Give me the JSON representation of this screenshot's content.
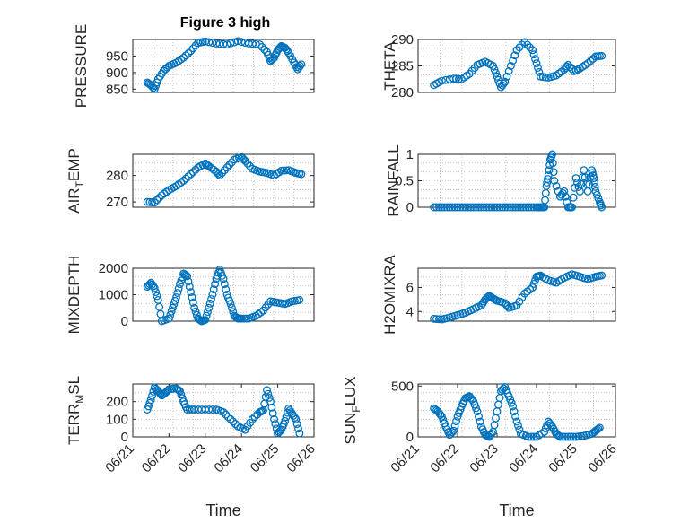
{
  "figure": {
    "title": "Figure 3 high"
  },
  "style": {
    "marker_color": "#0072BD",
    "axis_color": "#262626",
    "grid_color": "#b8b8b8"
  },
  "chart_data": [
    {
      "type": "scatter",
      "title": "Figure 3 high",
      "ylabel": "PRESSURE",
      "ylabel_sub": "",
      "ylabel_after": "",
      "xlabel": "",
      "ylim": [
        840,
        1000
      ],
      "yticks": [
        850,
        900,
        950
      ],
      "ytick_labels": [
        "850",
        "900",
        "950"
      ],
      "xlim": [
        "06/21",
        "06/26"
      ],
      "xticks": [],
      "grid": true,
      "points": [
        [
          0.4,
          870
        ],
        [
          0.5,
          862
        ],
        [
          0.6,
          850
        ],
        [
          0.7,
          880
        ],
        [
          0.85,
          905
        ],
        [
          1.0,
          920
        ],
        [
          1.2,
          930
        ],
        [
          1.4,
          945
        ],
        [
          1.6,
          965
        ],
        [
          1.8,
          990
        ],
        [
          2.0,
          994
        ],
        [
          2.3,
          988
        ],
        [
          2.6,
          985
        ],
        [
          2.9,
          995
        ],
        [
          3.2,
          988
        ],
        [
          3.5,
          985
        ],
        [
          3.7,
          962
        ],
        [
          3.8,
          935
        ],
        [
          3.9,
          945
        ],
        [
          4.0,
          968
        ],
        [
          4.1,
          980
        ],
        [
          4.2,
          975
        ],
        [
          4.3,
          960
        ],
        [
          4.45,
          930
        ],
        [
          4.55,
          910
        ],
        [
          4.65,
          925
        ]
      ]
    },
    {
      "type": "scatter",
      "title": "",
      "ylabel": "THETA",
      "ylabel_sub": "",
      "ylabel_after": "",
      "xlabel": "",
      "ylim": [
        280,
        290
      ],
      "yticks": [
        280,
        285,
        290
      ],
      "ytick_labels": [
        "280",
        "285",
        "290"
      ],
      "xlim": [
        "06/21",
        "06/26"
      ],
      "xticks": [],
      "grid": true,
      "points": [
        [
          0.4,
          281.4
        ],
        [
          0.6,
          282.2
        ],
        [
          0.9,
          282.6
        ],
        [
          1.1,
          282.5
        ],
        [
          1.3,
          283.5
        ],
        [
          1.5,
          285.2
        ],
        [
          1.7,
          285.8
        ],
        [
          1.9,
          285.0
        ],
        [
          2.0,
          283.0
        ],
        [
          2.1,
          281.0
        ],
        [
          2.2,
          282.0
        ],
        [
          2.35,
          285.0
        ],
        [
          2.5,
          288.0
        ],
        [
          2.7,
          289.5
        ],
        [
          2.9,
          288.0
        ],
        [
          3.0,
          285.5
        ],
        [
          3.1,
          283.0
        ],
        [
          3.3,
          282.8
        ],
        [
          3.5,
          283.2
        ],
        [
          3.7,
          284.3
        ],
        [
          3.8,
          285.2
        ],
        [
          3.95,
          284.0
        ],
        [
          4.1,
          284.5
        ],
        [
          4.3,
          285.5
        ],
        [
          4.5,
          286.8
        ],
        [
          4.65,
          286.9
        ]
      ]
    },
    {
      "type": "scatter",
      "title": "",
      "ylabel": "AIR",
      "ylabel_sub": "T",
      "ylabel_after": "EMP",
      "xlabel": "",
      "ylim": [
        268,
        288
      ],
      "yticks": [
        270,
        280
      ],
      "ytick_labels": [
        "270",
        "280"
      ],
      "xlim": [
        "06/21",
        "06/26"
      ],
      "xticks": [],
      "grid": true,
      "points": [
        [
          0.4,
          270.0
        ],
        [
          0.6,
          269.8
        ],
        [
          0.8,
          272.5
        ],
        [
          1.0,
          274.5
        ],
        [
          1.2,
          276.0
        ],
        [
          1.4,
          278.0
        ],
        [
          1.6,
          280.5
        ],
        [
          1.8,
          283.0
        ],
        [
          2.0,
          284.5
        ],
        [
          2.1,
          283.5
        ],
        [
          2.3,
          281.5
        ],
        [
          2.4,
          280.0
        ],
        [
          2.6,
          283.0
        ],
        [
          2.8,
          286.0
        ],
        [
          3.0,
          287.0
        ],
        [
          3.1,
          285.5
        ],
        [
          3.3,
          282.5
        ],
        [
          3.5,
          281.5
        ],
        [
          3.7,
          281.0
        ],
        [
          3.9,
          280.0
        ],
        [
          4.1,
          281.8
        ],
        [
          4.3,
          282.0
        ],
        [
          4.5,
          281.0
        ],
        [
          4.65,
          280.5
        ]
      ]
    },
    {
      "type": "scatter",
      "title": "",
      "ylabel": "RAINFALL",
      "ylabel_sub": "",
      "ylabel_after": "",
      "xlabel": "",
      "ylim": [
        0,
        1
      ],
      "yticks": [
        0,
        0.5,
        1
      ],
      "ytick_labels": [
        "0",
        "0.5",
        "1"
      ],
      "xlim": [
        "06/21",
        "06/26"
      ],
      "xticks": [],
      "grid": true,
      "points": [
        [
          0.4,
          0
        ],
        [
          0.6,
          0
        ],
        [
          0.8,
          0
        ],
        [
          1.0,
          0
        ],
        [
          1.2,
          0
        ],
        [
          1.4,
          0
        ],
        [
          1.6,
          0
        ],
        [
          1.8,
          0
        ],
        [
          2.0,
          0
        ],
        [
          2.2,
          0
        ],
        [
          2.4,
          0
        ],
        [
          2.6,
          0
        ],
        [
          2.8,
          0
        ],
        [
          3.0,
          0
        ],
        [
          3.1,
          0
        ],
        [
          3.2,
          0
        ],
        [
          3.25,
          0.4
        ],
        [
          3.3,
          0.6
        ],
        [
          3.35,
          0.9
        ],
        [
          3.4,
          1.0
        ],
        [
          3.45,
          0.5
        ],
        [
          3.6,
          0.2
        ],
        [
          3.7,
          0.3
        ],
        [
          3.8,
          0
        ],
        [
          3.9,
          0
        ],
        [
          4.0,
          0.55
        ],
        [
          4.1,
          0.3
        ],
        [
          4.2,
          0.7
        ],
        [
          4.3,
          0.3
        ],
        [
          4.4,
          0.7
        ],
        [
          4.45,
          0.55
        ],
        [
          4.5,
          0.3
        ],
        [
          4.6,
          0.1
        ],
        [
          4.65,
          0
        ]
      ]
    },
    {
      "type": "scatter",
      "title": "",
      "ylabel": "MIXDEPTH",
      "ylabel_sub": "",
      "ylabel_after": "",
      "xlabel": "",
      "ylim": [
        0,
        2000
      ],
      "yticks": [
        0,
        1000,
        2000
      ],
      "ytick_labels": [
        "0",
        "1000",
        "2000"
      ],
      "xlim": [
        "06/21",
        "06/26"
      ],
      "xticks": [],
      "grid": true,
      "points": [
        [
          0.4,
          1300
        ],
        [
          0.5,
          1450
        ],
        [
          0.6,
          1250
        ],
        [
          0.7,
          800
        ],
        [
          0.8,
          0
        ],
        [
          1.0,
          100
        ],
        [
          1.1,
          500
        ],
        [
          1.2,
          900
        ],
        [
          1.3,
          1400
        ],
        [
          1.4,
          1800
        ],
        [
          1.5,
          1700
        ],
        [
          1.6,
          1100
        ],
        [
          1.7,
          500
        ],
        [
          1.8,
          100
        ],
        [
          1.9,
          0
        ],
        [
          2.0,
          50
        ],
        [
          2.1,
          500
        ],
        [
          2.2,
          1000
        ],
        [
          2.3,
          1600
        ],
        [
          2.4,
          1950
        ],
        [
          2.5,
          1600
        ],
        [
          2.6,
          1000
        ],
        [
          2.7,
          650
        ],
        [
          2.8,
          200
        ],
        [
          2.9,
          100
        ],
        [
          3.0,
          100
        ],
        [
          3.2,
          100
        ],
        [
          3.4,
          200
        ],
        [
          3.6,
          400
        ],
        [
          3.8,
          750
        ],
        [
          4.0,
          700
        ],
        [
          4.2,
          650
        ],
        [
          4.4,
          750
        ],
        [
          4.6,
          800
        ]
      ]
    },
    {
      "type": "scatter",
      "title": "",
      "ylabel": "H2OMIXRA",
      "ylabel_sub": "",
      "ylabel_after": "",
      "xlabel": "",
      "ylim": [
        3.2,
        7.6
      ],
      "yticks": [
        4,
        6
      ],
      "ytick_labels": [
        "4",
        "6"
      ],
      "xlim": [
        "06/21",
        "06/26"
      ],
      "xticks": [],
      "grid": true,
      "points": [
        [
          0.4,
          3.4
        ],
        [
          0.6,
          3.35
        ],
        [
          0.8,
          3.5
        ],
        [
          1.0,
          3.7
        ],
        [
          1.2,
          3.9
        ],
        [
          1.4,
          4.2
        ],
        [
          1.6,
          4.5
        ],
        [
          1.7,
          5.0
        ],
        [
          1.8,
          5.3
        ],
        [
          1.9,
          5.1
        ],
        [
          2.0,
          4.9
        ],
        [
          2.2,
          4.7
        ],
        [
          2.3,
          4.3
        ],
        [
          2.5,
          4.5
        ],
        [
          2.7,
          5.5
        ],
        [
          2.9,
          6.0
        ],
        [
          3.0,
          6.9
        ],
        [
          3.1,
          7.0
        ],
        [
          3.3,
          6.6
        ],
        [
          3.5,
          6.4
        ],
        [
          3.7,
          6.8
        ],
        [
          3.9,
          7.1
        ],
        [
          4.1,
          6.9
        ],
        [
          4.3,
          6.7
        ],
        [
          4.5,
          6.9
        ],
        [
          4.65,
          7.0
        ]
      ]
    },
    {
      "type": "scatter",
      "title": "",
      "ylabel": "TERR",
      "ylabel_sub": "M",
      "ylabel_after": "SL",
      "xlabel": "Time",
      "ylim": [
        0,
        300
      ],
      "yticks": [
        0,
        100,
        200
      ],
      "ytick_labels": [
        "0",
        "100",
        "200"
      ],
      "xlim": [
        "06/21",
        "06/26"
      ],
      "xticks": [
        0,
        1,
        2,
        3,
        4,
        5
      ],
      "xtick_labels": [
        "06/21",
        "06/22",
        "06/23",
        "06/24",
        "06/25",
        "06/26"
      ],
      "grid": true,
      "points": [
        [
          0.4,
          155
        ],
        [
          0.5,
          210
        ],
        [
          0.6,
          280
        ],
        [
          0.7,
          260
        ],
        [
          0.8,
          235
        ],
        [
          0.9,
          250
        ],
        [
          1.0,
          270
        ],
        [
          1.2,
          275
        ],
        [
          1.3,
          260
        ],
        [
          1.4,
          200
        ],
        [
          1.5,
          155
        ],
        [
          1.7,
          155
        ],
        [
          2.0,
          155
        ],
        [
          2.3,
          155
        ],
        [
          2.5,
          140
        ],
        [
          2.7,
          100
        ],
        [
          2.9,
          60
        ],
        [
          3.1,
          40
        ],
        [
          3.3,
          100
        ],
        [
          3.5,
          140
        ],
        [
          3.6,
          150
        ],
        [
          3.7,
          265
        ],
        [
          3.8,
          200
        ],
        [
          3.9,
          100
        ],
        [
          4.0,
          20
        ],
        [
          4.1,
          40
        ],
        [
          4.2,
          90
        ],
        [
          4.3,
          160
        ],
        [
          4.4,
          130
        ],
        [
          4.5,
          100
        ],
        [
          4.6,
          20
        ]
      ]
    },
    {
      "type": "scatter",
      "title": "",
      "ylabel": "SUN",
      "ylabel_sub": "F",
      "ylabel_after": "LUX",
      "xlabel": "Time",
      "ylim": [
        0,
        520
      ],
      "yticks": [
        0,
        500
      ],
      "ytick_labels": [
        "0",
        "500"
      ],
      "xlim": [
        "06/21",
        "06/26"
      ],
      "xticks": [
        0,
        1,
        2,
        3,
        4,
        5
      ],
      "xtick_labels": [
        "06/21",
        "06/22",
        "06/23",
        "06/24",
        "06/25",
        "06/26"
      ],
      "grid": true,
      "points": [
        [
          0.4,
          280
        ],
        [
          0.5,
          250
        ],
        [
          0.6,
          200
        ],
        [
          0.7,
          100
        ],
        [
          0.8,
          20
        ],
        [
          0.9,
          60
        ],
        [
          1.0,
          200
        ],
        [
          1.1,
          300
        ],
        [
          1.2,
          380
        ],
        [
          1.3,
          400
        ],
        [
          1.4,
          350
        ],
        [
          1.5,
          250
        ],
        [
          1.6,
          100
        ],
        [
          1.7,
          20
        ],
        [
          1.8,
          0
        ],
        [
          1.9,
          50
        ],
        [
          2.0,
          250
        ],
        [
          2.1,
          450
        ],
        [
          2.2,
          490
        ],
        [
          2.3,
          400
        ],
        [
          2.4,
          300
        ],
        [
          2.5,
          150
        ],
        [
          2.6,
          30
        ],
        [
          2.8,
          0
        ],
        [
          3.0,
          0
        ],
        [
          3.2,
          50
        ],
        [
          3.3,
          150
        ],
        [
          3.4,
          100
        ],
        [
          3.5,
          30
        ],
        [
          3.6,
          0
        ],
        [
          3.8,
          0
        ],
        [
          4.0,
          0
        ],
        [
          4.2,
          10
        ],
        [
          4.4,
          30
        ],
        [
          4.5,
          60
        ],
        [
          4.6,
          90
        ]
      ]
    }
  ]
}
